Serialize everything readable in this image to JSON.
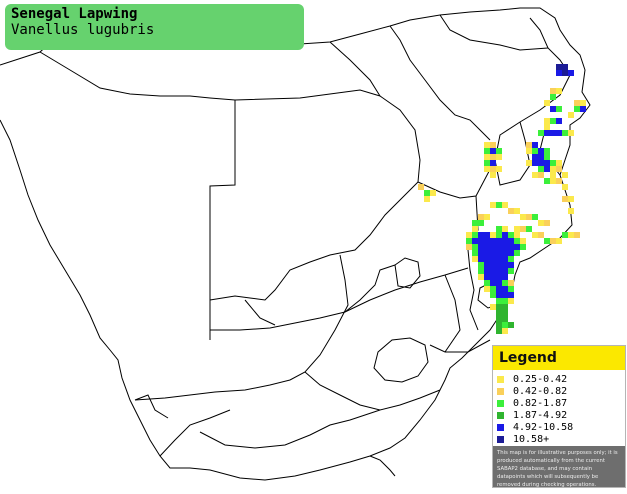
{
  "title": {
    "common_name": "Senegal Lapwing",
    "scientific_name": "Vanellus lugubris"
  },
  "legend": {
    "heading": "Legend",
    "items": [
      {
        "label": "0.25-0.42",
        "color": "#fbe94c"
      },
      {
        "label": "0.42-0.82",
        "color": "#fad05a"
      },
      {
        "label": "0.82-1.87",
        "color": "#3bef3b"
      },
      {
        "label": "1.87-4.92",
        "color": "#2fb42f"
      },
      {
        "label": "4.92-10.58",
        "color": "#1a1ae6"
      },
      {
        "label": "10.58+",
        "color": "#1c1c96"
      }
    ],
    "note": "This map is for illustrative purposes only; it is produced automatically from the current SABAP2 database, and may contain datapoints which will subsequently be removed during checking operations."
  },
  "colors": {
    "title_bg": "#66d26e",
    "legend_header_bg": "#fbe800",
    "note_bg": "#6e6e6e",
    "border_line": "#000000"
  }
}
